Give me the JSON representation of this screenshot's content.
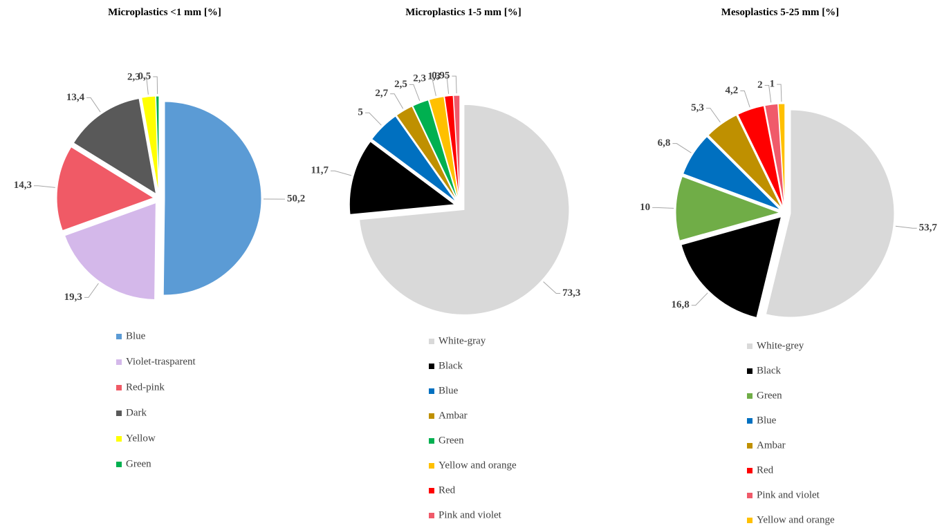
{
  "chart_data": [
    {
      "type": "pie",
      "title": "Microplastics <1 mm [%]",
      "categories": [
        "Blue",
        "Violet-trasparent",
        "Red-pink",
        "Dark",
        "Yellow",
        "Green"
      ],
      "values": [
        50.2,
        19.3,
        14.3,
        13.4,
        2.3,
        0.5
      ],
      "value_labels": [
        "50,2",
        "19,3",
        "14,3",
        "13,4",
        "2,3",
        "0,5"
      ],
      "colors": [
        "#5b9bd5",
        "#d4b8ea",
        "#f05a66",
        "#595959",
        "#ffff00",
        "#00b050"
      ]
    },
    {
      "type": "pie",
      "title": "Microplastics 1-5 mm [%]",
      "categories": [
        "White-gray",
        "Black",
        "Blue",
        "Ambar",
        "Green",
        "Yellow and orange",
        "Red",
        "Pink and violet"
      ],
      "values": [
        73.3,
        11.7,
        5,
        2.7,
        2.5,
        2.3,
        1.3,
        0.95
      ],
      "value_labels": [
        "73,3",
        "11,7",
        "5",
        "2,7",
        "2,5",
        "2,3",
        "1,3",
        "0,95"
      ],
      "colors": [
        "#d9d9d9",
        "#000000",
        "#0070c0",
        "#bf9000",
        "#00b050",
        "#ffc000",
        "#ff0000",
        "#f05a6a"
      ]
    },
    {
      "type": "pie",
      "title": "Mesoplastics 5-25 mm [%]",
      "categories": [
        "White-grey",
        "Black",
        "Green",
        "Blue",
        "Ambar",
        "Red",
        "Pink and violet",
        "Yellow and orange"
      ],
      "values": [
        53.7,
        16.8,
        10,
        6.8,
        5.3,
        4.2,
        2,
        1
      ],
      "value_labels": [
        "53,7",
        "16,8",
        "10",
        "6,8",
        "5,3",
        "4,2",
        "2",
        "1"
      ],
      "colors": [
        "#d9d9d9",
        "#000000",
        "#70ad47",
        "#0070c0",
        "#bf9000",
        "#ff0000",
        "#f05a6a",
        "#ffc000"
      ]
    }
  ]
}
